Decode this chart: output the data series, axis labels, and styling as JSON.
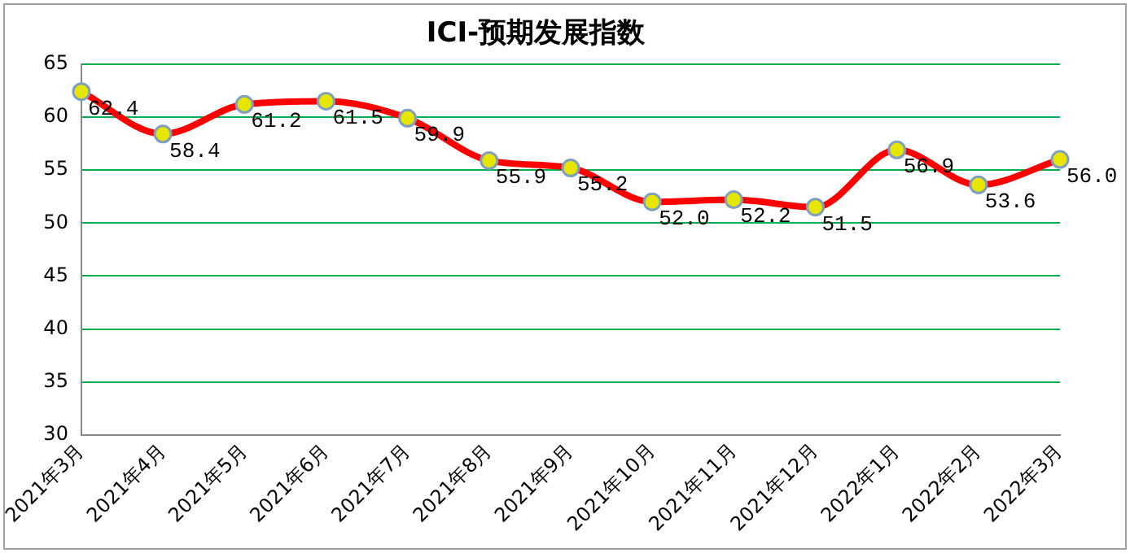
{
  "chart_data": {
    "type": "line",
    "title": "ICI-预期发展指数",
    "categories": [
      "2021年3月",
      "2021年4月",
      "2021年5月",
      "2021年6月",
      "2021年7月",
      "2021年8月",
      "2021年9月",
      "2021年10月",
      "2021年11月",
      "2021年12月",
      "2022年1月",
      "2022年2月",
      "2022年3月"
    ],
    "series": [
      {
        "color": "#ff0000",
        "values": [
          62.4,
          58.4,
          61.2,
          61.5,
          59.9,
          55.9,
          55.2,
          52.0,
          52.2,
          51.5,
          56.9,
          53.6,
          56.0
        ],
        "value_labels": [
          "62.4",
          "58.4",
          "61.2",
          "61.5",
          "59.9",
          "55.9",
          "55.2",
          "52.0",
          "52.2",
          "51.5",
          "56.9",
          "53.6",
          "56.0"
        ]
      }
    ],
    "ylim": [
      30,
      65
    ],
    "yticks": [
      30,
      35,
      40,
      45,
      50,
      55,
      60,
      65
    ],
    "grid": "y",
    "marker": "circle",
    "line_style": "solid"
  }
}
